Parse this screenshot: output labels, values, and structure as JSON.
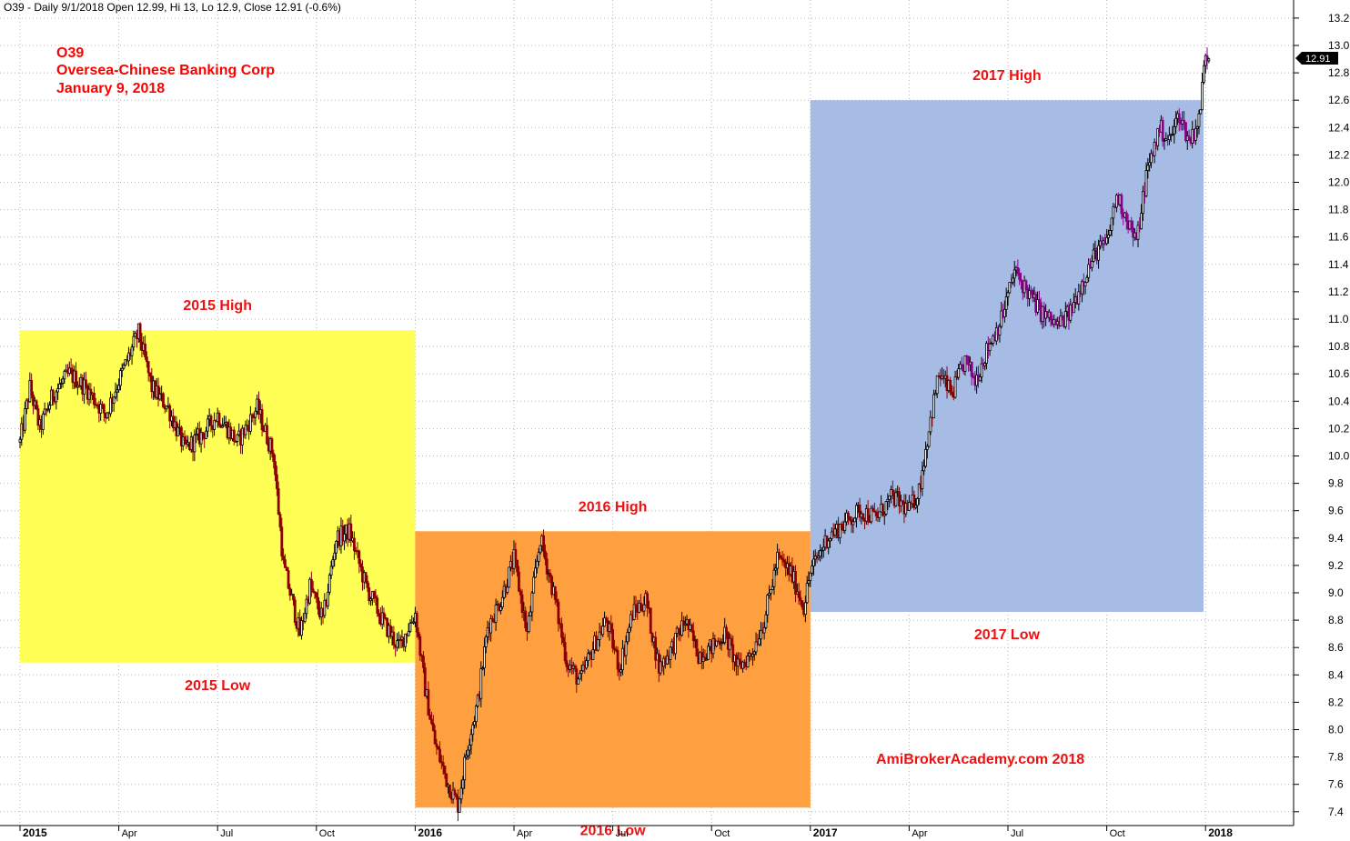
{
  "header": {
    "text": "O39 - Daily 9/1/2018 Open 12.99, Hi 13, Lo 12.9, Close 12.91 (-0.6%)"
  },
  "titles": [
    "O39",
    "Oversea-Chinese Banking Corp",
    "January 9, 2018"
  ],
  "watermark": "AmiBrokerAcademy.com  2018",
  "last_price_tag": "12.91",
  "colors": {
    "region_2015": "#ffff55",
    "region_2016": "#ffa040",
    "region_2017": "#a6bce4",
    "title": "#ff0000",
    "label": "#ee1111",
    "candle_down": "#8b0000",
    "candle_up": "#000000",
    "candle_recent": "#880088",
    "price_tag": "#000000"
  },
  "chart_data": {
    "type": "candlestick",
    "title": "O39 Oversea-Chinese Banking Corp January 9, 2018",
    "ylim": [
      7.3,
      13.3
    ],
    "y_ticks": [
      "13.2",
      "13.0",
      "12.8",
      "12.6",
      "12.4",
      "12.2",
      "12.0",
      "11.8",
      "11.6",
      "11.4",
      "11.2",
      "11.0",
      "10.8",
      "10.6",
      "10.4",
      "10.2",
      "10.0",
      "9.8",
      "9.6",
      "9.4",
      "9.2",
      "9.0",
      "8.8",
      "8.6",
      "8.4",
      "8.2",
      "8.0",
      "7.8",
      "7.6",
      "7.4"
    ],
    "x_axis": {
      "start": "2015-01-01",
      "end": "2018-01-09",
      "ticks": [
        {
          "label": "2015",
          "month": 0,
          "year": true
        },
        {
          "label": "Apr",
          "month": 3
        },
        {
          "label": "Jul",
          "month": 6
        },
        {
          "label": "Oct",
          "month": 9
        },
        {
          "label": "2016",
          "month": 12,
          "year": true
        },
        {
          "label": "Apr",
          "month": 15
        },
        {
          "label": "Jul",
          "month": 18
        },
        {
          "label": "Oct",
          "month": 21
        },
        {
          "label": "2017",
          "month": 24,
          "year": true
        },
        {
          "label": "Apr",
          "month": 27
        },
        {
          "label": "Jul",
          "month": 30
        },
        {
          "label": "Oct",
          "month": 33
        },
        {
          "label": "2018",
          "month": 36,
          "year": true
        }
      ]
    },
    "regions": [
      {
        "label_high": "2015 High",
        "label_low": "2015 Low",
        "year": 2015,
        "high": 10.92,
        "low": 8.49,
        "color_key": "region_2015"
      },
      {
        "label_high": "2016 High",
        "label_low": "2016 Low",
        "year": 2016,
        "high": 9.45,
        "low": 7.43,
        "color_key": "region_2016"
      },
      {
        "label_high": "2017 High",
        "label_low": "2017 Low",
        "year": 2017,
        "high": 12.6,
        "low": 8.86,
        "color_key": "region_2017"
      }
    ],
    "price_path": [
      [
        0.0,
        10.1
      ],
      [
        0.3,
        10.5
      ],
      [
        0.6,
        10.2
      ],
      [
        1.0,
        10.45
      ],
      [
        1.5,
        10.6
      ],
      [
        2.0,
        10.5
      ],
      [
        2.6,
        10.3
      ],
      [
        3.0,
        10.55
      ],
      [
        3.6,
        10.9
      ],
      [
        4.0,
        10.5
      ],
      [
        4.5,
        10.35
      ],
      [
        5.0,
        10.05
      ],
      [
        5.5,
        10.15
      ],
      [
        6.0,
        10.3
      ],
      [
        6.6,
        10.1
      ],
      [
        7.2,
        10.35
      ],
      [
        7.7,
        10.0
      ],
      [
        8.0,
        9.2
      ],
      [
        8.5,
        8.7
      ],
      [
        8.8,
        9.05
      ],
      [
        9.2,
        8.8
      ],
      [
        9.6,
        9.4
      ],
      [
        10.0,
        9.45
      ],
      [
        10.5,
        9.05
      ],
      [
        11.0,
        8.8
      ],
      [
        11.5,
        8.6
      ],
      [
        12.0,
        8.85
      ],
      [
        12.3,
        8.3
      ],
      [
        12.6,
        7.9
      ],
      [
        13.0,
        7.6
      ],
      [
        13.3,
        7.45
      ],
      [
        13.6,
        7.9
      ],
      [
        13.9,
        8.2
      ],
      [
        14.2,
        8.75
      ],
      [
        14.6,
        8.95
      ],
      [
        15.0,
        9.25
      ],
      [
        15.4,
        8.7
      ],
      [
        15.8,
        9.4
      ],
      [
        16.2,
        9.0
      ],
      [
        16.6,
        8.5
      ],
      [
        17.0,
        8.35
      ],
      [
        17.4,
        8.6
      ],
      [
        17.8,
        8.8
      ],
      [
        18.2,
        8.45
      ],
      [
        18.6,
        8.85
      ],
      [
        19.0,
        8.95
      ],
      [
        19.4,
        8.45
      ],
      [
        19.8,
        8.6
      ],
      [
        20.2,
        8.8
      ],
      [
        20.6,
        8.55
      ],
      [
        21.0,
        8.6
      ],
      [
        21.4,
        8.7
      ],
      [
        21.8,
        8.45
      ],
      [
        22.2,
        8.55
      ],
      [
        22.6,
        8.8
      ],
      [
        23.0,
        9.25
      ],
      [
        23.4,
        9.15
      ],
      [
        23.8,
        8.9
      ],
      [
        24.0,
        9.15
      ],
      [
        24.5,
        9.4
      ],
      [
        25.0,
        9.5
      ],
      [
        25.5,
        9.6
      ],
      [
        26.0,
        9.55
      ],
      [
        26.5,
        9.7
      ],
      [
        27.0,
        9.6
      ],
      [
        27.3,
        9.75
      ],
      [
        27.6,
        10.2
      ],
      [
        27.9,
        10.6
      ],
      [
        28.3,
        10.45
      ],
      [
        28.7,
        10.7
      ],
      [
        29.0,
        10.55
      ],
      [
        29.4,
        10.8
      ],
      [
        29.8,
        11.0
      ],
      [
        30.2,
        11.35
      ],
      [
        30.6,
        11.2
      ],
      [
        31.0,
        11.05
      ],
      [
        31.5,
        10.95
      ],
      [
        31.9,
        11.05
      ],
      [
        32.3,
        11.3
      ],
      [
        32.7,
        11.5
      ],
      [
        33.0,
        11.55
      ],
      [
        33.3,
        11.9
      ],
      [
        33.6,
        11.75
      ],
      [
        33.9,
        11.55
      ],
      [
        34.2,
        12.05
      ],
      [
        34.6,
        12.4
      ],
      [
        34.9,
        12.3
      ],
      [
        35.2,
        12.5
      ],
      [
        35.5,
        12.3
      ],
      [
        35.8,
        12.45
      ],
      [
        36.0,
        12.95
      ],
      [
        36.15,
        12.91
      ]
    ]
  }
}
